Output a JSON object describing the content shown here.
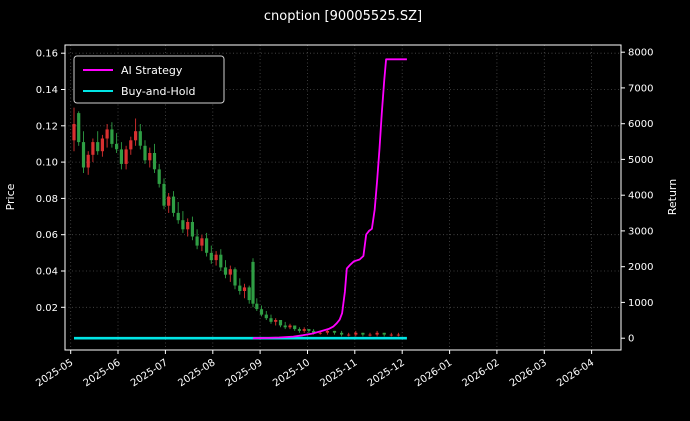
{
  "chart_data": {
    "type": "candlestick+line",
    "title": "cnoption [90005525.SZ]",
    "ylabel_left": "Price",
    "ylabel_right": "Return",
    "legend_position": "upper-left",
    "grid": true,
    "x_tick_labels": [
      "2025-05",
      "2025-06",
      "2025-07",
      "2025-08",
      "2025-09",
      "2025-10",
      "2025-11",
      "2025-12",
      "2026-01",
      "2026-02",
      "2026-03",
      "2026-04"
    ],
    "x_ticks_months": [
      0,
      1,
      2,
      3,
      4,
      5,
      6,
      7,
      8,
      9,
      10,
      11
    ],
    "price_ticks": [
      0.02,
      0.04,
      0.06,
      0.08,
      0.1,
      0.12,
      0.14,
      0.16
    ],
    "return_ticks": [
      0,
      1000,
      2000,
      3000,
      4000,
      5000,
      6000,
      7000,
      8000
    ],
    "x_axis_range_months": [
      -0.12,
      11.62
    ],
    "price_axis_range": [
      -0.0035,
      0.1645
    ],
    "return_axis_range": [
      -330,
      8200
    ],
    "colors": {
      "bg": "#000000",
      "fg": "#ffffff",
      "ai": "#ff00ff",
      "bh": "#00e5e5",
      "up": "#d93030",
      "down": "#2f9e44",
      "grid": "#6e6e6e"
    },
    "candles_note": "each candle = [months_since_2025-05-01, open, high, low, close]; red when close>=open (up), green when down",
    "candles": [
      [
        0.07,
        0.112,
        0.13,
        0.106,
        0.121
      ],
      [
        0.17,
        0.127,
        0.128,
        0.109,
        0.111
      ],
      [
        0.27,
        0.111,
        0.117,
        0.094,
        0.097
      ],
      [
        0.37,
        0.097,
        0.106,
        0.093,
        0.104
      ],
      [
        0.47,
        0.104,
        0.113,
        0.1,
        0.111
      ],
      [
        0.57,
        0.111,
        0.117,
        0.104,
        0.106
      ],
      [
        0.67,
        0.106,
        0.115,
        0.103,
        0.113
      ],
      [
        0.77,
        0.113,
        0.121,
        0.108,
        0.118
      ],
      [
        0.87,
        0.118,
        0.122,
        0.108,
        0.11
      ],
      [
        0.97,
        0.11,
        0.116,
        0.105,
        0.107
      ],
      [
        1.07,
        0.107,
        0.111,
        0.096,
        0.099
      ],
      [
        1.17,
        0.099,
        0.109,
        0.096,
        0.107
      ],
      [
        1.27,
        0.107,
        0.114,
        0.104,
        0.112
      ],
      [
        1.37,
        0.112,
        0.124,
        0.109,
        0.117
      ],
      [
        1.47,
        0.117,
        0.121,
        0.107,
        0.109
      ],
      [
        1.57,
        0.109,
        0.112,
        0.099,
        0.101
      ],
      [
        1.67,
        0.101,
        0.108,
        0.097,
        0.105
      ],
      [
        1.77,
        0.105,
        0.11,
        0.094,
        0.096
      ],
      [
        1.87,
        0.096,
        0.099,
        0.086,
        0.088
      ],
      [
        1.97,
        0.088,
        0.091,
        0.074,
        0.076
      ],
      [
        2.07,
        0.076,
        0.083,
        0.072,
        0.081
      ],
      [
        2.17,
        0.081,
        0.084,
        0.07,
        0.072
      ],
      [
        2.27,
        0.072,
        0.078,
        0.066,
        0.068
      ],
      [
        2.37,
        0.068,
        0.073,
        0.061,
        0.063
      ],
      [
        2.47,
        0.063,
        0.069,
        0.059,
        0.067
      ],
      [
        2.57,
        0.067,
        0.07,
        0.057,
        0.059
      ],
      [
        2.67,
        0.059,
        0.063,
        0.052,
        0.054
      ],
      [
        2.77,
        0.054,
        0.06,
        0.051,
        0.058
      ],
      [
        2.87,
        0.058,
        0.061,
        0.048,
        0.05
      ],
      [
        2.97,
        0.05,
        0.054,
        0.044,
        0.046
      ],
      [
        3.07,
        0.046,
        0.051,
        0.043,
        0.049
      ],
      [
        3.17,
        0.049,
        0.052,
        0.04,
        0.042
      ],
      [
        3.27,
        0.042,
        0.046,
        0.036,
        0.038
      ],
      [
        3.37,
        0.038,
        0.043,
        0.034,
        0.041
      ],
      [
        3.47,
        0.041,
        0.042,
        0.03,
        0.032
      ],
      [
        3.57,
        0.032,
        0.036,
        0.027,
        0.029
      ],
      [
        3.67,
        0.029,
        0.033,
        0.025,
        0.031
      ],
      [
        3.77,
        0.031,
        0.032,
        0.022,
        0.024
      ],
      [
        3.85,
        0.045,
        0.047,
        0.02,
        0.022
      ],
      [
        3.93,
        0.022,
        0.025,
        0.018,
        0.019
      ],
      [
        4.03,
        0.019,
        0.021,
        0.015,
        0.016
      ],
      [
        4.13,
        0.016,
        0.018,
        0.013,
        0.014
      ],
      [
        4.23,
        0.014,
        0.016,
        0.011,
        0.012
      ],
      [
        4.33,
        0.012,
        0.014,
        0.01,
        0.013
      ],
      [
        4.43,
        0.013,
        0.013,
        0.009,
        0.01
      ],
      [
        4.53,
        0.01,
        0.012,
        0.008,
        0.009
      ],
      [
        4.63,
        0.009,
        0.011,
        0.008,
        0.01
      ],
      [
        4.73,
        0.01,
        0.01,
        0.007,
        0.008
      ],
      [
        4.83,
        0.008,
        0.009,
        0.006,
        0.007
      ],
      [
        4.93,
        0.007,
        0.009,
        0.006,
        0.008
      ],
      [
        5.03,
        0.008,
        0.008,
        0.006,
        0.007
      ],
      [
        5.13,
        0.007,
        0.008,
        0.005,
        0.006
      ],
      [
        5.27,
        0.006,
        0.007,
        0.005,
        0.006
      ],
      [
        5.42,
        0.006,
        0.008,
        0.005,
        0.007
      ],
      [
        5.57,
        0.007,
        0.007,
        0.005,
        0.006
      ],
      [
        5.72,
        0.006,
        0.007,
        0.004,
        0.005
      ],
      [
        5.87,
        0.005,
        0.006,
        0.004,
        0.005
      ],
      [
        6.02,
        0.005,
        0.007,
        0.004,
        0.006
      ],
      [
        6.17,
        0.006,
        0.006,
        0.004,
        0.005
      ],
      [
        6.32,
        0.005,
        0.006,
        0.004,
        0.005
      ],
      [
        6.47,
        0.005,
        0.007,
        0.004,
        0.006
      ],
      [
        6.62,
        0.006,
        0.006,
        0.004,
        0.005
      ],
      [
        6.77,
        0.005,
        0.006,
        0.004,
        0.005
      ],
      [
        6.92,
        0.005,
        0.006,
        0.004,
        0.005
      ]
    ],
    "ai_strategy": {
      "name": "AI Strategy",
      "points_note": "[months_since_2025-05-01, return]",
      "points": [
        [
          3.85,
          0
        ],
        [
          4.1,
          5
        ],
        [
          4.4,
          20
        ],
        [
          4.7,
          45
        ],
        [
          4.9,
          80
        ],
        [
          5.1,
          130
        ],
        [
          5.3,
          200
        ],
        [
          5.45,
          260
        ],
        [
          5.55,
          330
        ],
        [
          5.62,
          420
        ],
        [
          5.68,
          520
        ],
        [
          5.73,
          700
        ],
        [
          5.79,
          1300
        ],
        [
          5.83,
          1950
        ],
        [
          5.9,
          2050
        ],
        [
          5.98,
          2150
        ],
        [
          6.1,
          2200
        ],
        [
          6.18,
          2300
        ],
        [
          6.24,
          2900
        ],
        [
          6.3,
          3000
        ],
        [
          6.36,
          3060
        ],
        [
          6.42,
          3600
        ],
        [
          6.47,
          4400
        ],
        [
          6.52,
          5300
        ],
        [
          6.57,
          6300
        ],
        [
          6.62,
          7200
        ],
        [
          6.66,
          7800
        ],
        [
          7.1,
          7800
        ]
      ]
    },
    "buy_and_hold": {
      "name": "Buy-and-Hold",
      "points": [
        [
          0.07,
          0
        ],
        [
          7.1,
          0
        ]
      ]
    }
  }
}
